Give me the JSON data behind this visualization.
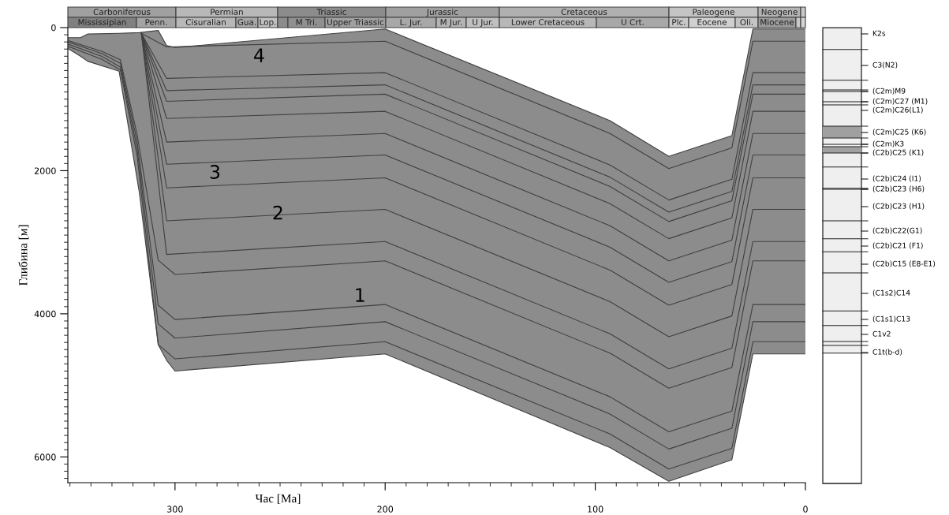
{
  "chart_data": [
    {
      "type": "line",
      "xlabel": "Час [Ma]",
      "ylabel": "Глибина [м]",
      "xlim": [
        351,
        0
      ],
      "ylim": [
        6360,
        0
      ],
      "xticks": [
        {
          "value": 350,
          "label": null
        },
        {
          "value": 340,
          "label": null
        },
        {
          "value": 330,
          "label": null
        },
        {
          "value": 320,
          "label": null
        },
        {
          "value": 310,
          "label": null
        },
        300,
        {
          "value": 290,
          "label": null
        },
        {
          "value": 280,
          "label": null
        },
        {
          "value": 270,
          "label": null
        },
        {
          "value": 260,
          "label": null
        },
        {
          "value": 250,
          "label": null
        },
        {
          "value": 240,
          "label": null
        },
        {
          "value": 230,
          "label": null
        },
        {
          "value": 220,
          "label": null
        },
        {
          "value": 210,
          "label": null
        },
        200,
        {
          "value": 190,
          "label": null
        },
        {
          "value": 180,
          "label": null
        },
        {
          "value": 170,
          "label": null
        },
        {
          "value": 160,
          "label": null
        },
        {
          "value": 150,
          "label": null
        },
        {
          "value": 140,
          "label": null
        },
        {
          "value": 130,
          "label": null
        },
        {
          "value": 120,
          "label": null
        },
        {
          "value": 110,
          "label": null
        },
        100,
        {
          "value": 90,
          "label": null
        },
        {
          "value": 80,
          "label": null
        },
        {
          "value": 70,
          "label": null
        },
        {
          "value": 60,
          "label": null
        },
        {
          "value": 50,
          "label": null
        },
        {
          "value": 40,
          "label": null
        },
        {
          "value": 30,
          "label": null
        },
        {
          "value": 20,
          "label": null
        },
        {
          "value": 10,
          "label": null
        },
        0
      ],
      "yticks": [
        0,
        {
          "value": 100,
          "label": null
        },
        {
          "value": 200,
          "label": null
        },
        {
          "value": 300,
          "label": null
        },
        {
          "value": 400,
          "label": null
        },
        {
          "value": 500,
          "label": null
        },
        {
          "value": 600,
          "label": null
        },
        {
          "value": 700,
          "label": null
        },
        {
          "value": 800,
          "label": null
        },
        {
          "value": 900,
          "label": null
        },
        {
          "value": 1000,
          "label": null
        },
        {
          "value": 1100,
          "label": null
        },
        {
          "value": 1200,
          "label": null
        },
        {
          "value": 1300,
          "label": null
        },
        {
          "value": 1400,
          "label": null
        },
        {
          "value": 1500,
          "label": null
        },
        {
          "value": 1600,
          "label": null
        },
        {
          "value": 1700,
          "label": null
        },
        {
          "value": 1800,
          "label": null
        },
        {
          "value": 1900,
          "label": null
        },
        2000,
        {
          "value": 2100,
          "label": null
        },
        {
          "value": 2200,
          "label": null
        },
        {
          "value": 2300,
          "label": null
        },
        {
          "value": 2400,
          "label": null
        },
        {
          "value": 2500,
          "label": null
        },
        {
          "value": 2600,
          "label": null
        },
        {
          "value": 2700,
          "label": null
        },
        {
          "value": 2800,
          "label": null
        },
        {
          "value": 2900,
          "label": null
        },
        {
          "value": 3000,
          "label": null
        },
        {
          "value": 3100,
          "label": null
        },
        {
          "value": 3200,
          "label": null
        },
        {
          "value": 3300,
          "label": null
        },
        {
          "value": 3400,
          "label": null
        },
        {
          "value": 3500,
          "label": null
        },
        {
          "value": 3600,
          "label": null
        },
        {
          "value": 3700,
          "label": null
        },
        {
          "value": 3800,
          "label": null
        },
        {
          "value": 3900,
          "label": null
        },
        4000,
        {
          "value": 4100,
          "label": null
        },
        {
          "value": 4200,
          "label": null
        },
        {
          "value": 4300,
          "label": null
        },
        {
          "value": 4400,
          "label": null
        },
        {
          "value": 4500,
          "label": null
        },
        {
          "value": 4600,
          "label": null
        },
        {
          "value": 4700,
          "label": null
        },
        {
          "value": 4800,
          "label": null
        },
        {
          "value": 4900,
          "label": null
        },
        {
          "value": 5000,
          "label": null
        },
        {
          "value": 5100,
          "label": null
        },
        {
          "value": 5200,
          "label": null
        },
        {
          "value": 5300,
          "label": null
        },
        {
          "value": 5400,
          "label": null
        },
        {
          "value": 5500,
          "label": null
        },
        {
          "value": 5600,
          "label": null
        },
        {
          "value": 5700,
          "label": null
        },
        {
          "value": 5800,
          "label": null
        },
        {
          "value": 5900,
          "label": null
        },
        6000,
        {
          "value": 6100,
          "label": null
        },
        {
          "value": 6200,
          "label": null
        },
        {
          "value": 6300,
          "label": null
        }
      ],
      "grid": false,
      "legend": false,
      "marker": "none",
      "line_style": "solid",
      "series": [
        {
          "color": "#404040",
          "x": [
            351,
            345,
            341.6,
            326.6,
            317,
            308,
            304,
            300,
            200,
            93,
            65,
            35,
            25,
            0
          ],
          "values": [
            140,
            140,
            90,
            80,
            70,
            40,
            250,
            280,
            20,
            1300,
            1800,
            1510,
            20,
            20
          ],
          "lower": [
            140,
            140,
            90,
            80,
            70,
            40,
            250,
            280,
            20,
            1300,
            1800,
            1510,
            20,
            20
          ],
          "upper": [
            290,
            400,
            470,
            610,
            2300,
            4430,
            4650,
            4800,
            4560,
            5870,
            6340,
            6040,
            4560,
            4560
          ]
        },
        {
          "color": "#404040",
          "x": [
            351,
            345,
            341.6,
            326.6,
            317,
            308,
            304,
            300,
            200,
            93,
            65,
            35,
            25,
            0
          ],
          "values": [
            290,
            400,
            470,
            610,
            2300,
            4430,
            4650,
            4800,
            4560,
            5870,
            6340,
            6040,
            4560,
            4560
          ]
        },
        {
          "color": "#404040",
          "x": [
            316,
            304,
            200,
            93,
            65,
            35,
            25,
            0
          ],
          "values": [
            80,
            270,
            190,
            1480,
            1970,
            1680,
            190,
            190
          ]
        },
        {
          "color": "#404040",
          "x": [
            316,
            304,
            200,
            93,
            65,
            35,
            25,
            0
          ],
          "values": [
            80,
            710,
            630,
            1920,
            2410,
            2120,
            630,
            630
          ]
        },
        {
          "color": "#404040",
          "x": [
            316,
            304,
            200,
            93,
            65,
            35,
            25,
            0
          ],
          "values": [
            80,
            880,
            800,
            2090,
            2580,
            2290,
            800,
            800
          ]
        },
        {
          "color": "#404040",
          "x": [
            316,
            304,
            200,
            93,
            65,
            35,
            25,
            0
          ],
          "values": [
            80,
            1030,
            930,
            2220,
            2710,
            2420,
            930,
            930
          ]
        },
        {
          "color": "#404040",
          "x": [
            316,
            304,
            200,
            93,
            65,
            35,
            25,
            0
          ],
          "values": [
            80,
            1270,
            1170,
            2460,
            2950,
            2660,
            1170,
            1170
          ]
        },
        {
          "color": "#404040",
          "x": [
            316,
            304,
            200,
            93,
            65,
            35,
            25,
            0
          ],
          "values": [
            80,
            1600,
            1480,
            2770,
            3260,
            2970,
            1480,
            1480
          ]
        },
        {
          "color": "#404040",
          "x": [
            316,
            304,
            200,
            93,
            65,
            35,
            25,
            0
          ],
          "values": [
            80,
            1910,
            1780,
            3070,
            3560,
            3270,
            1780,
            1780
          ]
        },
        {
          "color": "#404040",
          "x": [
            316,
            304,
            200,
            93,
            65,
            35,
            25,
            0
          ],
          "values": [
            80,
            2240,
            2100,
            3390,
            3880,
            3590,
            2100,
            2100
          ]
        },
        {
          "color": "#404040",
          "x": [
            316,
            304,
            200,
            93,
            65,
            35,
            25,
            0
          ],
          "values": [
            80,
            2700,
            2540,
            3830,
            4320,
            4030,
            2540,
            2540
          ]
        },
        {
          "color": "#404040",
          "x": [
            316,
            304,
            200,
            93,
            65,
            35,
            25,
            0
          ],
          "values": [
            80,
            3170,
            2990,
            4280,
            4770,
            4480,
            2990,
            2990
          ]
        },
        {
          "color": "#404040",
          "x": [
            351,
            335,
            326,
            318,
            308,
            300,
            200,
            93,
            65,
            35,
            25,
            0
          ],
          "values": [
            180,
            330,
            450,
            1500,
            3250,
            3450,
            3260,
            4550,
            5040,
            4750,
            3260,
            3260
          ]
        },
        {
          "color": "#404040",
          "x": [
            351,
            335,
            326,
            318,
            308,
            300,
            200,
            93,
            65,
            35,
            25,
            0
          ],
          "values": [
            200,
            360,
            500,
            1600,
            3880,
            4080,
            3870,
            5160,
            5650,
            5360,
            3870,
            3870
          ]
        },
        {
          "color": "#404040",
          "x": [
            351,
            335,
            326,
            318,
            308,
            300,
            200,
            93,
            65,
            35,
            25,
            0
          ],
          "values": [
            230,
            400,
            550,
            1700,
            4140,
            4340,
            4110,
            5400,
            5890,
            5600,
            4110,
            4110
          ]
        },
        {
          "color": "#404040",
          "x": [
            351,
            335,
            326,
            318,
            308,
            300,
            200,
            93,
            65,
            35,
            25,
            0
          ],
          "values": [
            260,
            440,
            590,
            1800,
            4430,
            4630,
            4390,
            5680,
            6170,
            5880,
            4390,
            4390
          ]
        }
      ],
      "annotations": [
        "4",
        "3",
        "2",
        "1"
      ]
    },
    {
      "type": "other",
      "annotations": [
        "Carboniferous",
        "Permian",
        "Triassic",
        "Jurassic",
        "Cretaceous",
        "Paleogene",
        "Neogene",
        "Mississipian",
        "Penn.",
        "Cisuralian",
        "Gua.",
        "Lop.",
        "M Tri.",
        "Upper Triassic",
        "L. Jur.",
        "M Jur.",
        "U Jur.",
        "Lower Cretaceous",
        "U Crt.",
        "Plc.",
        "Eocene",
        "Oli.",
        "Miocene"
      ]
    },
    {
      "type": "other",
      "annotations": [
        "K2s",
        "C3(N2)",
        "(C2m)M9",
        "(C2m)C27 (M1)",
        "(C2m)C26(L1)",
        "(C2m)C25 (K6)",
        "(C2m)K3",
        "(C2b)C25 (K1)",
        "(C2b)C24 (I1)",
        "(C2b)C23 (H6)",
        "(C2b)C23 (H1)",
        "(C2b)C22(G1)",
        "(C2b)C21 (F1)",
        "(C2b)C15 (E8-E1)",
        "(C1s2)C14",
        "(C1s1)C13",
        "C1v2",
        "C1t(b-d)"
      ]
    }
  ]
}
